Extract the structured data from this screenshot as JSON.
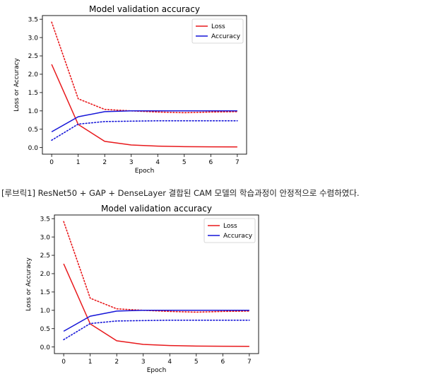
{
  "caption": "[루브릭1] ResNet50 + GAP + DenseLayer 결합된 CAM 모델의 학습과정이 안정적으로 수렴하였다.",
  "chart_data": [
    {
      "type": "line",
      "title": "Model validation accuracy",
      "xlabel": "Epoch",
      "ylabel": "Loss or Accuracy",
      "x": [
        0,
        1,
        2,
        3,
        4,
        5,
        6,
        7
      ],
      "xlim": [
        -0.35,
        7.35
      ],
      "ylim": [
        -0.18,
        3.6
      ],
      "xticks": [
        "0",
        "1",
        "2",
        "3",
        "4",
        "5",
        "6",
        "7"
      ],
      "yticks": [
        "0.0",
        "0.5",
        "1.0",
        "1.5",
        "2.0",
        "2.5",
        "3.0",
        "3.5"
      ],
      "grid": false,
      "legend": "top-right",
      "series": [
        {
          "name": "Loss",
          "style": "solid",
          "color": "#e8191c",
          "values": [
            2.27,
            0.63,
            0.17,
            0.07,
            0.04,
            0.025,
            0.02,
            0.018
          ]
        },
        {
          "name": "",
          "style": "dotted",
          "color": "#e8191c",
          "values": [
            3.42,
            1.33,
            1.04,
            1.0,
            0.97,
            0.95,
            0.97,
            0.98
          ]
        },
        {
          "name": "Accuracy",
          "style": "solid",
          "color": "#1515d8",
          "values": [
            0.43,
            0.84,
            0.98,
            1.0,
            1.0,
            1.0,
            1.0,
            1.0
          ]
        },
        {
          "name": "",
          "style": "dotted",
          "color": "#1515d8",
          "values": [
            0.2,
            0.64,
            0.71,
            0.72,
            0.73,
            0.73,
            0.73,
            0.73
          ]
        }
      ]
    },
    {
      "type": "line",
      "title": "Model validation accuracy",
      "xlabel": "Epoch",
      "ylabel": "Loss or Accuracy",
      "x": [
        0,
        1,
        2,
        3,
        4,
        5,
        6,
        7
      ],
      "xlim": [
        -0.35,
        7.35
      ],
      "ylim": [
        -0.18,
        3.6
      ],
      "xticks": [
        "0",
        "1",
        "2",
        "3",
        "4",
        "5",
        "6",
        "7"
      ],
      "yticks": [
        "0.0",
        "0.5",
        "1.0",
        "1.5",
        "2.0",
        "2.5",
        "3.0",
        "3.5"
      ],
      "grid": false,
      "legend": "top-right",
      "series": [
        {
          "name": "Loss",
          "style": "solid",
          "color": "#e8191c",
          "values": [
            2.27,
            0.63,
            0.17,
            0.07,
            0.04,
            0.025,
            0.02,
            0.018
          ]
        },
        {
          "name": "",
          "style": "dotted",
          "color": "#e8191c",
          "values": [
            3.42,
            1.33,
            1.04,
            1.0,
            0.97,
            0.95,
            0.97,
            0.98
          ]
        },
        {
          "name": "Accuracy",
          "style": "solid",
          "color": "#1515d8",
          "values": [
            0.43,
            0.84,
            0.98,
            1.0,
            1.0,
            1.0,
            1.0,
            1.0
          ]
        },
        {
          "name": "",
          "style": "dotted",
          "color": "#1515d8",
          "values": [
            0.2,
            0.64,
            0.71,
            0.72,
            0.73,
            0.73,
            0.73,
            0.73
          ]
        }
      ]
    }
  ]
}
